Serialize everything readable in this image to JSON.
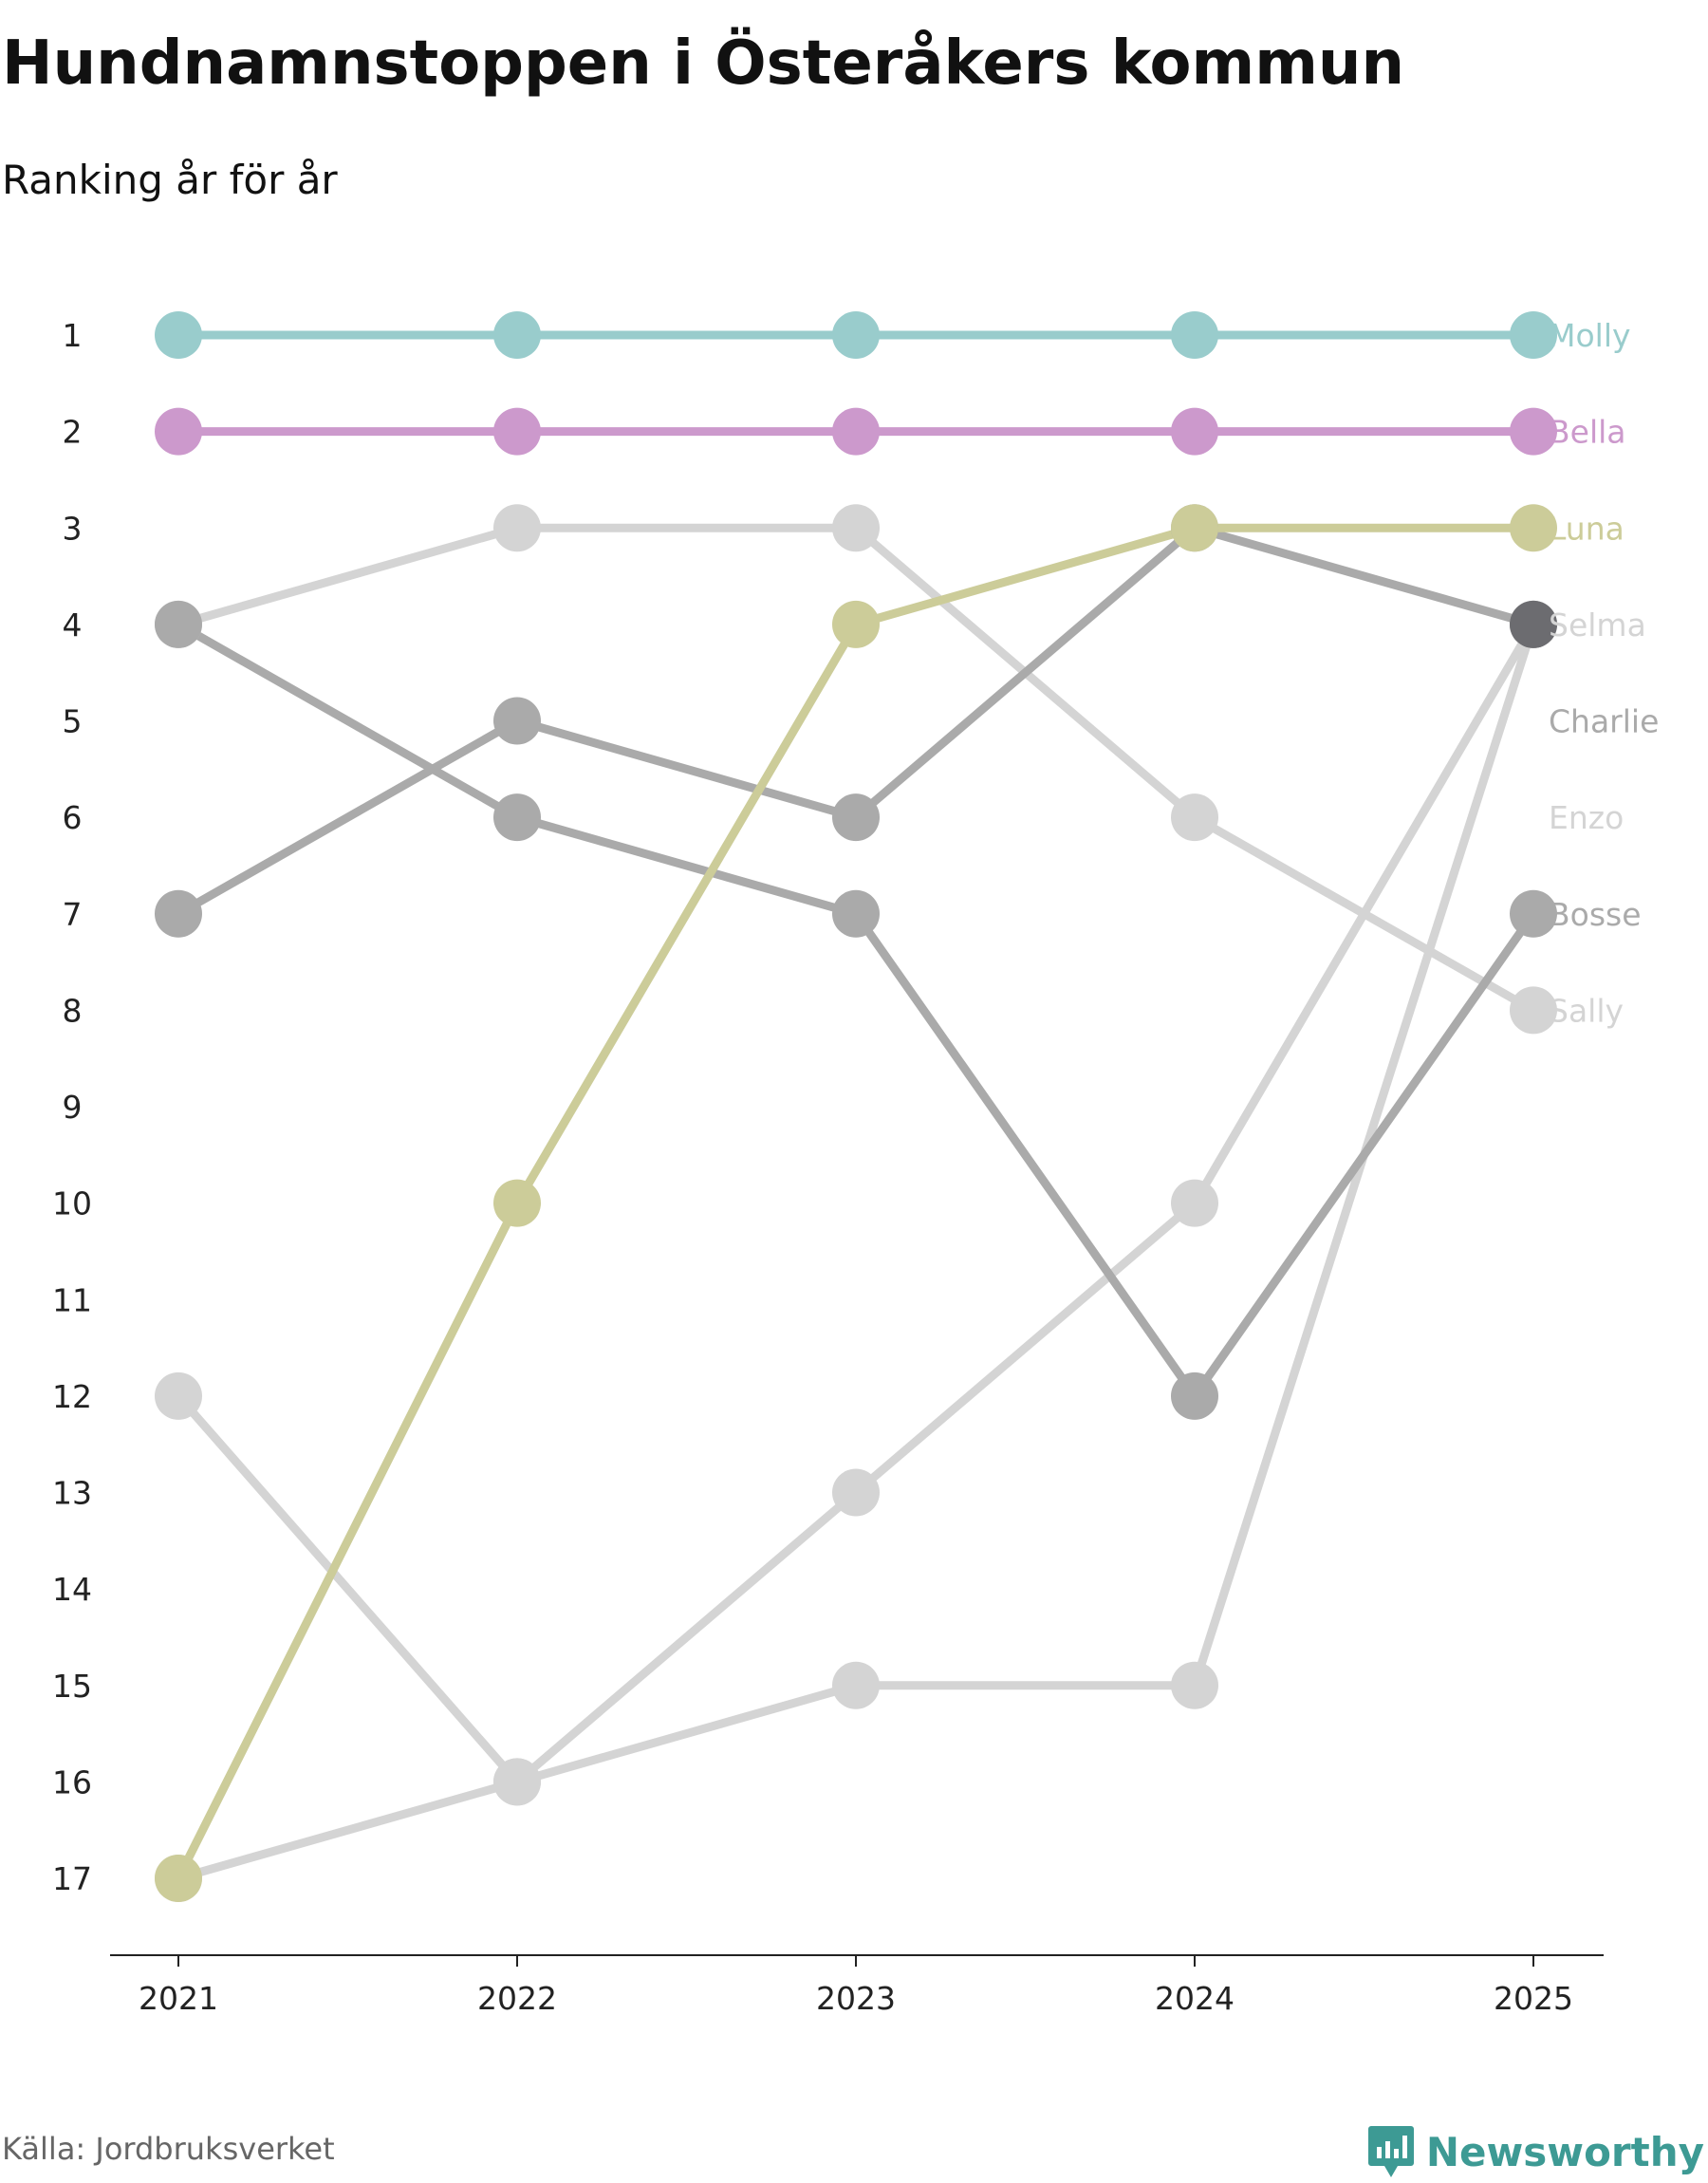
{
  "title": "Hundnamnstoppen i Österåkers kommun",
  "subtitle": "Ranking år för år",
  "source": "Källa: Jordbruksverket",
  "brand": "Newsworthy",
  "brand_color": "#3d9a94",
  "chart_data": {
    "type": "line",
    "subtype": "bump",
    "title": "Hundnamnstoppen i Österåkers kommun",
    "subtitle": "Ranking år för år",
    "xlabel": "",
    "ylabel": "",
    "x": [
      "2021",
      "2022",
      "2023",
      "2024",
      "2025"
    ],
    "y_ticks": [
      1,
      2,
      3,
      4,
      5,
      6,
      7,
      8,
      9,
      10,
      11,
      12,
      13,
      14,
      15,
      16,
      17
    ],
    "ylim": [
      1,
      17
    ],
    "y_inverted": true,
    "grid": false,
    "series": [
      {
        "name": "Sally",
        "color": "#d4d4d4",
        "values": [
          4,
          3,
          3,
          6,
          8
        ],
        "label_rank": 8
      },
      {
        "name": "Enzo",
        "color": "#d4d4d4",
        "values": [
          17,
          16,
          13,
          10,
          4
        ],
        "label_rank": 6
      },
      {
        "name": "Selma",
        "color": "#d4d4d4",
        "values": [
          12,
          16,
          15,
          15,
          4
        ],
        "label_rank": 4
      },
      {
        "name": "Bosse",
        "color": "#aaaaaa",
        "values": [
          4,
          6,
          7,
          12,
          7
        ],
        "label_rank": 7
      },
      {
        "name": "Charlie",
        "color": "#aaaaaa",
        "values": [
          7,
          5,
          6,
          3,
          4
        ],
        "label_rank": 5
      },
      {
        "name": "Luna",
        "color": "#cccc99",
        "values": [
          17,
          10,
          4,
          3,
          3
        ],
        "label_rank": 3
      },
      {
        "name": "Bella",
        "color": "#cc99cc",
        "values": [
          2,
          2,
          2,
          2,
          2
        ],
        "label_rank": 2
      },
      {
        "name": "Molly",
        "color": "#99cccc",
        "values": [
          1,
          1,
          1,
          1,
          1
        ],
        "label_rank": 1
      }
    ]
  }
}
